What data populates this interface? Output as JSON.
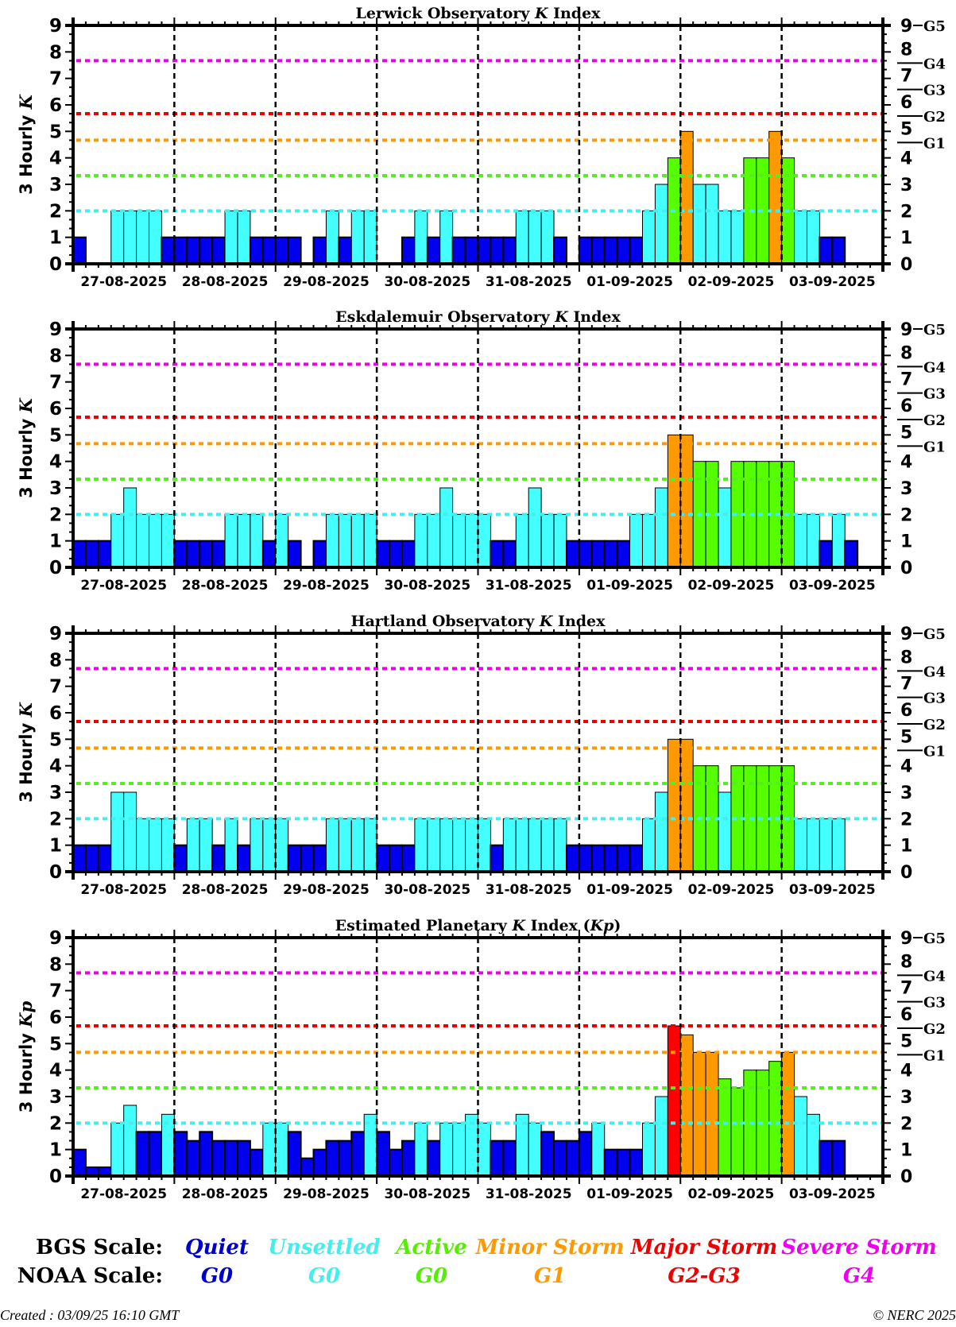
{
  "chart_data": {
    "type": "bar",
    "colors": {
      "quiet": "#0000ee",
      "unsettled": "#44ffff",
      "active": "#55ff00",
      "minor": "#ff9900",
      "major": "#ff0000",
      "severe": "#ff00ff"
    },
    "thresholds": [
      {
        "level": "unsettled",
        "value": 2.0,
        "color": "#44eeee"
      },
      {
        "level": "active",
        "value": 3.33,
        "color": "#55ee22"
      },
      {
        "level": "minor",
        "value": 4.67,
        "color": "#ff9900"
      },
      {
        "level": "major",
        "value": 5.67,
        "color": "#ee0000"
      },
      {
        "level": "severe",
        "value": 7.67,
        "color": "#ee00ee"
      }
    ],
    "slots_per_day": 8,
    "days": [
      "27-08-2025",
      "28-08-2025",
      "29-08-2025",
      "30-08-2025",
      "31-08-2025",
      "01-09-2025",
      "02-09-2025",
      "03-09-2025"
    ],
    "ylim": [
      0,
      9
    ],
    "yticks": [
      "0",
      "1",
      "2",
      "3",
      "4",
      "5",
      "6",
      "7",
      "8",
      "9"
    ],
    "right_axis": {
      "ticks": [
        "0",
        "1",
        "2",
        "3",
        "4",
        "5",
        "6",
        "7",
        "8",
        "9"
      ],
      "g_labels": [
        {
          "label": "G1",
          "value": 4.67
        },
        {
          "label": "G2",
          "value": 5.67
        },
        {
          "label": "G3",
          "value": 6.67
        },
        {
          "label": "G4",
          "value": 7.67
        },
        {
          "label": "G5",
          "value": 9
        }
      ]
    },
    "panels": [
      {
        "title": "Lerwick Observatory K Index",
        "title_parts": [
          "Lerwick Observatory ",
          "K",
          " Index"
        ],
        "ylabel_parts": [
          "3 Hourly ",
          "K"
        ],
        "values": [
          1,
          0,
          0,
          2,
          2,
          2,
          2,
          1,
          1,
          1,
          1,
          1,
          2,
          2,
          1,
          1,
          1,
          1,
          0,
          1,
          2,
          1,
          2,
          2,
          0,
          0,
          1,
          2,
          1,
          2,
          1,
          1,
          1,
          1,
          1,
          2,
          2,
          2,
          1,
          0,
          1,
          1,
          1,
          1,
          1,
          2,
          3,
          4,
          5,
          3,
          3,
          2,
          2,
          4,
          4,
          5,
          4,
          2,
          2,
          1,
          1,
          null,
          null,
          null
        ]
      },
      {
        "title": "Eskdalemuir Observatory K Index",
        "title_parts": [
          "Eskdalemuir Observatory ",
          "K",
          " Index"
        ],
        "ylabel_parts": [
          "3 Hourly ",
          "K"
        ],
        "values": [
          1,
          1,
          1,
          2,
          3,
          2,
          2,
          2,
          1,
          1,
          1,
          1,
          2,
          2,
          2,
          1,
          2,
          1,
          0,
          1,
          2,
          2,
          2,
          2,
          1,
          1,
          1,
          2,
          2,
          3,
          2,
          2,
          2,
          1,
          1,
          2,
          3,
          2,
          2,
          1,
          1,
          1,
          1,
          1,
          2,
          2,
          3,
          5,
          5,
          4,
          4,
          3,
          4,
          4,
          4,
          4,
          4,
          2,
          2,
          1,
          2,
          1,
          null,
          null
        ]
      },
      {
        "title": "Hartland Observatory K Index",
        "title_parts": [
          "Hartland Observatory ",
          "K",
          " Index"
        ],
        "ylabel_parts": [
          "3 Hourly ",
          "K"
        ],
        "values": [
          1,
          1,
          1,
          3,
          3,
          2,
          2,
          2,
          1,
          2,
          2,
          1,
          2,
          1,
          2,
          2,
          2,
          1,
          1,
          1,
          2,
          2,
          2,
          2,
          1,
          1,
          1,
          2,
          2,
          2,
          2,
          2,
          2,
          1,
          2,
          2,
          2,
          2,
          2,
          1,
          1,
          1,
          1,
          1,
          1,
          2,
          3,
          5,
          5,
          4,
          4,
          3,
          4,
          4,
          4,
          4,
          4,
          2,
          2,
          2,
          2,
          null,
          null,
          null
        ]
      },
      {
        "title": "Estimated Planetary K Index (Kp)",
        "title_parts": [
          "Estimated Planetary ",
          "K",
          " Index (",
          "Kp",
          ")"
        ],
        "ylabel_parts": [
          "3 Hourly ",
          "Kp"
        ],
        "values": [
          1.0,
          0.33,
          0.33,
          2.0,
          2.67,
          1.67,
          1.67,
          2.33,
          1.67,
          1.33,
          1.67,
          1.33,
          1.33,
          1.33,
          1.0,
          2.0,
          2.0,
          1.67,
          0.67,
          1.0,
          1.33,
          1.33,
          1.67,
          2.33,
          1.67,
          1.0,
          1.33,
          2.0,
          1.33,
          2.0,
          2.0,
          2.33,
          2.0,
          1.33,
          1.33,
          2.33,
          2.0,
          1.67,
          1.33,
          1.33,
          1.67,
          2.0,
          1.0,
          1.0,
          1.0,
          2.0,
          3.0,
          5.67,
          5.33,
          4.67,
          4.67,
          3.67,
          3.33,
          4.0,
          4.0,
          4.33,
          4.67,
          3.0,
          2.33,
          1.33,
          1.33,
          null,
          null,
          null
        ]
      }
    ]
  },
  "legend": {
    "bgs_label": "BGS Scale:",
    "noaa_label": "NOAA Scale:",
    "items": [
      {
        "bgs": "Quiet",
        "noaa": "G0",
        "color": "#0000cc"
      },
      {
        "bgs": "Unsettled",
        "noaa": "G0",
        "color": "#44eeee"
      },
      {
        "bgs": "Active",
        "noaa": "G0",
        "color": "#55ee00"
      },
      {
        "bgs": "Minor Storm",
        "noaa": "G1",
        "color": "#ff9900"
      },
      {
        "bgs": "Major Storm",
        "noaa": "G2-G3",
        "color": "#ee0000"
      },
      {
        "bgs": "Severe Storm",
        "noaa": "G4",
        "color": "#ee00ee"
      }
    ]
  },
  "footer": {
    "created": "Created : 03/09/25 16:10 GMT",
    "copyright": "© NERC 2025"
  }
}
